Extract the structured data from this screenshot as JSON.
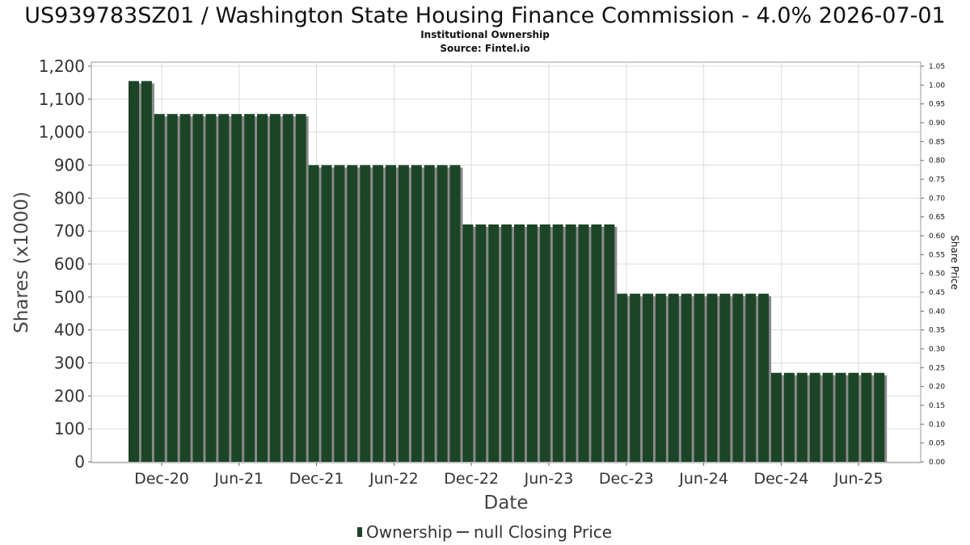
{
  "chart_data": {
    "type": "bar",
    "title": "US939783SZ01 / Washington State Housing Finance Commission - 4.0% 2026-07-01",
    "subtitle": "Institutional Ownership",
    "source": "Source: Fintel.io",
    "xlabel": "Date",
    "ylabel": "Shares (x1000)",
    "y2label": "Share Price",
    "ylim": [
      0,
      1200
    ],
    "y2lim": [
      0,
      1.05
    ],
    "yticks": [
      "0",
      "100",
      "200",
      "300",
      "400",
      "500",
      "600",
      "700",
      "800",
      "900",
      "1,000",
      "1,100",
      "1,200"
    ],
    "y2ticks": [
      "0.00",
      "0.05",
      "0.10",
      "0.15",
      "0.20",
      "0.25",
      "0.30",
      "0.35",
      "0.40",
      "0.45",
      "0.50",
      "0.55",
      "0.60",
      "0.65",
      "0.70",
      "0.75",
      "0.80",
      "0.85",
      "0.90",
      "0.95",
      "1.00",
      "1.05"
    ],
    "xticks": [
      "Dec-20",
      "Jun-21",
      "Dec-21",
      "Jun-22",
      "Dec-22",
      "Jun-23",
      "Dec-23",
      "Jun-24",
      "Dec-24",
      "Jun-25"
    ],
    "grid": true,
    "legend_position": "bottom",
    "series": [
      {
        "name": "Ownership",
        "color": "#1c4527",
        "values": [
          1155,
          1155,
          1055,
          1055,
          1055,
          1055,
          1055,
          1055,
          1055,
          1055,
          1055,
          1055,
          1055,
          1055,
          900,
          900,
          900,
          900,
          900,
          900,
          900,
          900,
          900,
          900,
          900,
          900,
          720,
          720,
          720,
          720,
          720,
          720,
          720,
          720,
          720,
          720,
          720,
          720,
          510,
          510,
          510,
          510,
          510,
          510,
          510,
          510,
          510,
          510,
          510,
          510,
          270,
          270,
          270,
          270,
          270,
          270,
          270,
          270,
          270
        ]
      },
      {
        "name": "null Closing Price",
        "color": "#444444",
        "values": []
      }
    ]
  }
}
